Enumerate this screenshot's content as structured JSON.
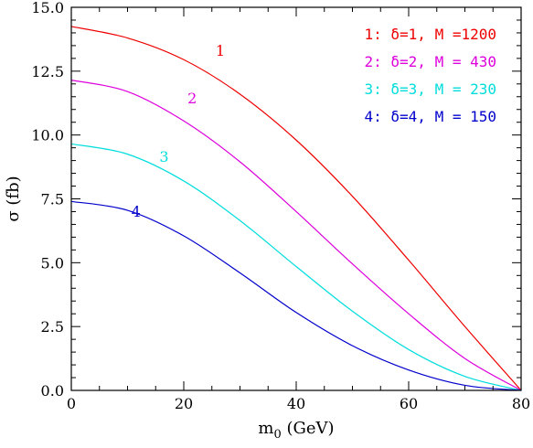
{
  "chart_data": {
    "type": "line",
    "xlabel": "m",
    "xlabel_sub": "0",
    "xlabel_unit": " (GeV)",
    "ylabel": "σ (fb)",
    "xlim": [
      0,
      80
    ],
    "ylim": [
      0,
      15
    ],
    "xticks": [
      0,
      20,
      40,
      60,
      80
    ],
    "xtick_labels": [
      "0",
      "20",
      "40",
      "60",
      "80"
    ],
    "yticks": [
      0,
      2.5,
      5,
      7.5,
      10,
      12.5,
      15
    ],
    "ytick_labels": [
      "0.0",
      "2.5",
      "5.0",
      "7.5",
      "10.0",
      "12.5",
      "15.0"
    ],
    "grid": false,
    "legend_position": "top-right",
    "series": [
      {
        "name": "1: δ=1, M =1200",
        "label": "1",
        "color": "#ee0000",
        "x": [
          0,
          10,
          20,
          30,
          40,
          50,
          60,
          70,
          80
        ],
        "y": [
          14.25,
          13.8,
          12.95,
          11.6,
          9.8,
          7.6,
          5.1,
          2.5,
          0
        ]
      },
      {
        "name": "2: δ=2, M = 430",
        "label": "2",
        "color": "#dd00dd",
        "x": [
          0,
          10,
          20,
          30,
          40,
          50,
          60,
          70,
          80
        ],
        "y": [
          12.15,
          11.7,
          10.55,
          8.95,
          7.0,
          4.95,
          3.0,
          1.25,
          0
        ]
      },
      {
        "name": "3: δ=3, M = 230",
        "label": "3",
        "color": "#00dddd",
        "x": [
          0,
          10,
          20,
          30,
          40,
          50,
          60,
          70,
          80
        ],
        "y": [
          9.65,
          9.25,
          8.2,
          6.65,
          4.85,
          3.1,
          1.6,
          0.55,
          0
        ]
      },
      {
        "name": "4: δ=4, M = 150",
        "label": "4",
        "color": "#0000cc",
        "x": [
          0,
          10,
          20,
          30,
          40,
          50,
          60,
          70,
          80
        ],
        "y": [
          7.4,
          7.05,
          6.05,
          4.6,
          3.05,
          1.75,
          0.8,
          0.2,
          0
        ]
      }
    ],
    "curve_labels": [
      {
        "text": "1",
        "color": "#ee0000",
        "x": 26.5,
        "y": 13.1
      },
      {
        "text": "2",
        "color": "#dd00dd",
        "x": 21.5,
        "y": 11.25
      },
      {
        "text": "3",
        "color": "#00dddd",
        "x": 16.5,
        "y": 8.95
      },
      {
        "text": "4",
        "color": "#0000cc",
        "x": 11.5,
        "y": 6.8
      }
    ]
  }
}
